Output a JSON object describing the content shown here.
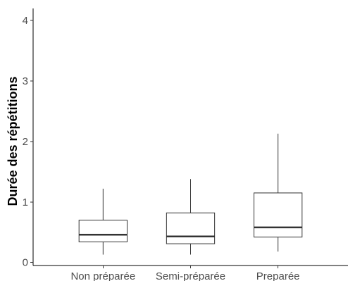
{
  "chart_data": {
    "type": "boxplot",
    "title": "",
    "xlabel": "",
    "ylabel": "Durée des répétitions",
    "ylim": [
      -0.05,
      4.2
    ],
    "yticks": [
      0,
      1,
      2,
      3,
      4
    ],
    "grid": false,
    "legend": "none",
    "categories": [
      "Non préparée",
      "Semi-préparée",
      "Preparée"
    ],
    "boxes": [
      {
        "category": "Non préparée",
        "min": 0.13,
        "q1": 0.34,
        "median": 0.46,
        "q3": 0.7,
        "max": 1.22
      },
      {
        "category": "Semi-préparée",
        "min": 0.13,
        "q1": 0.31,
        "median": 0.43,
        "q3": 0.82,
        "max": 1.38
      },
      {
        "category": "Preparée",
        "min": 0.18,
        "q1": 0.42,
        "median": 0.58,
        "q3": 1.15,
        "max": 2.13
      }
    ]
  }
}
